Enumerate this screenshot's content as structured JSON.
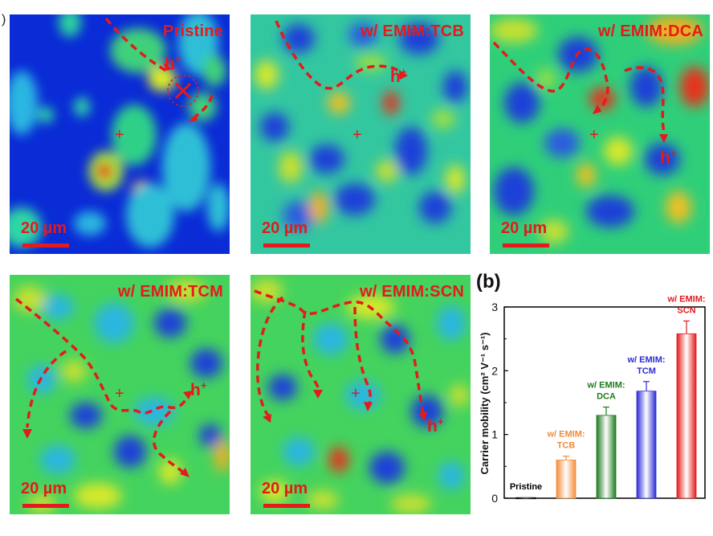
{
  "panels": [
    {
      "id": "pristine",
      "title": "Pristine",
      "scale": "20 µm",
      "hole": "h",
      "hole_sup": "+",
      "base": "#0a2bd6"
    },
    {
      "id": "tcb",
      "title": "w/ EMIM:TCB",
      "scale": "20 µm",
      "hole": "h",
      "hole_sup": "+",
      "base": "#1fc27a"
    },
    {
      "id": "dca",
      "title": "w/ EMIM:DCA",
      "scale": "20 µm",
      "hole": "h",
      "hole_sup": "+",
      "base": "#2fcf6a"
    },
    {
      "id": "tcm",
      "title": "w/ EMIM:TCM",
      "scale": "20 µm",
      "hole": "h",
      "hole_sup": "+",
      "base": "#45d45a"
    },
    {
      "id": "scn",
      "title": "w/ EMIM:SCN",
      "scale": "20 µm",
      "hole": "h",
      "hole_sup": "+",
      "base": "#45d45a"
    }
  ],
  "marker": "+",
  "left_edge": ")",
  "chart_label": "(b)",
  "chart_data": {
    "type": "bar",
    "categories": [
      "Pristine",
      "w/ EMIM: TCB",
      "w/ EMIM: DCA",
      "w/ EMIM: TCM",
      "w/ EMIM: SCN"
    ],
    "category_lines": [
      [
        "Pristine"
      ],
      [
        "w/ EMIM:",
        "TCB"
      ],
      [
        "w/ EMIM:",
        "DCA"
      ],
      [
        "w/ EMIM:",
        "TCM"
      ],
      [
        "w/ EMIM:",
        "SCN"
      ]
    ],
    "values": [
      0.01,
      0.6,
      1.3,
      1.68,
      2.58
    ],
    "errors": [
      0,
      0.06,
      0.13,
      0.15,
      0.2
    ],
    "colors": [
      "#000000",
      "#f28c38",
      "#1e7b1e",
      "#2b2bd6",
      "#e41a1c"
    ],
    "ylabel": "Carrier mobility (cm² V⁻¹ s⁻¹)",
    "ylim": [
      0,
      3
    ],
    "yticks": [
      0,
      1,
      2,
      3
    ]
  }
}
